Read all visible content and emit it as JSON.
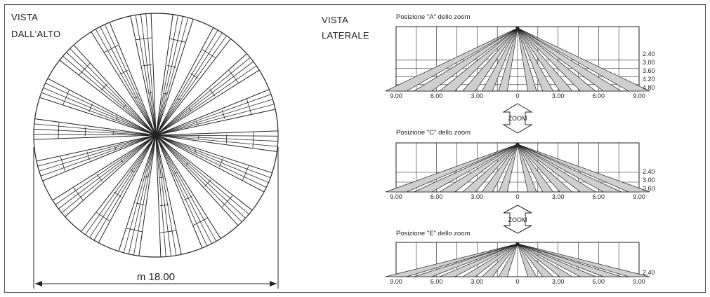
{
  "top_view": {
    "title_line1": "VISTA",
    "title_line2": "DALL'ALTO",
    "dimension_label": "m 18.00"
  },
  "side_view": {
    "title_line1": "VISTA",
    "title_line2": "LATERALE",
    "zoom_label": "ZOOM",
    "panels": [
      {
        "caption": "Posizione \"A\" dello zoom",
        "x_ticks": [
          "9.00",
          "6.00",
          "3.00",
          "0",
          "3.00",
          "6.00",
          "9.00"
        ],
        "height_labels": [
          "2.40",
          "3.00",
          "3.60",
          "4.20",
          "4.80"
        ]
      },
      {
        "caption": "Posizione \"C\" dello zoom",
        "x_ticks": [
          "9.00",
          "6.00",
          "3.00",
          "0",
          "3.00",
          "6.00",
          "9.00"
        ],
        "height_labels": [
          "2.40",
          "3.00",
          "3.60"
        ]
      },
      {
        "caption": "Posizione \"E\" dello zoom",
        "x_ticks": [
          "9.00",
          "6.00",
          "3.00",
          "0",
          "3.00",
          "6.00",
          "9.00"
        ],
        "height_labels": [
          "2.40"
        ]
      }
    ]
  },
  "colors": {
    "beam_fill": "#cfcfcf",
    "line": "#222222"
  }
}
